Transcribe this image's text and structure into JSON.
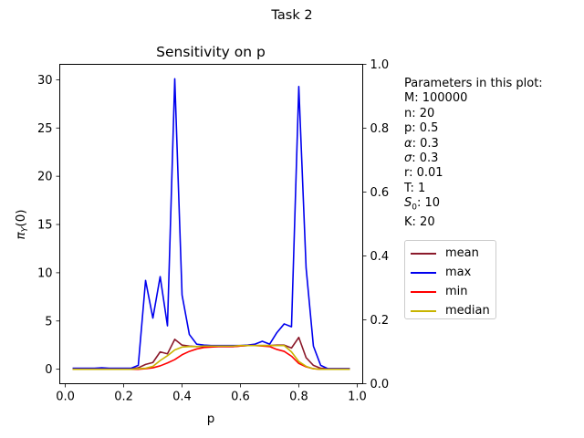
{
  "figure": {
    "suptitle": "Task 2",
    "params_title": "Parameters in this plot:",
    "params": [
      {
        "label": "M",
        "value": "100000"
      },
      {
        "label": "n",
        "value": "20"
      },
      {
        "label": "p",
        "value": "0.5"
      },
      {
        "label": "α",
        "value": "0.3",
        "italic": true
      },
      {
        "label": "σ",
        "value": "0.3",
        "italic": true
      },
      {
        "label": "r",
        "value": "0.01"
      },
      {
        "label": "T",
        "value": "1"
      },
      {
        "label": "S0",
        "value": "10",
        "italic": true,
        "sub": true
      },
      {
        "label": "K",
        "value": "20"
      }
    ]
  },
  "chart_data": {
    "type": "line",
    "title": "Sensitivity on p",
    "xlabel": "p",
    "ylabel": "π_Y(0)",
    "xlim": [
      -0.019,
      1.019
    ],
    "ylim": [
      -1.5,
      31.6
    ],
    "xticks": [
      "0.0",
      "0.2",
      "0.4",
      "0.6",
      "0.8",
      "1.0"
    ],
    "yticks": [
      "0",
      "5",
      "10",
      "15",
      "20",
      "25",
      "30"
    ],
    "y2lim": [
      0,
      1
    ],
    "y2ticks": [
      "0.0",
      "0.2",
      "0.4",
      "0.6",
      "0.8",
      "1.0"
    ],
    "legend_position": "outside-right",
    "x": [
      0.025,
      0.05,
      0.075,
      0.1,
      0.125,
      0.15,
      0.175,
      0.2,
      0.225,
      0.25,
      0.275,
      0.3,
      0.325,
      0.35,
      0.375,
      0.4,
      0.425,
      0.45,
      0.475,
      0.5,
      0.525,
      0.55,
      0.575,
      0.6,
      0.625,
      0.65,
      0.675,
      0.7,
      0.725,
      0.75,
      0.775,
      0.8,
      0.825,
      0.85,
      0.875,
      0.9,
      0.925,
      0.95,
      0.975
    ],
    "series": [
      {
        "name": "mean",
        "color": "#8b1a2b",
        "values": [
          0.05,
          0.05,
          0.05,
          0.05,
          0.1,
          0.05,
          0.05,
          0.05,
          0.05,
          0.15,
          0.5,
          0.7,
          1.8,
          1.6,
          3.1,
          2.5,
          2.4,
          2.35,
          2.35,
          2.35,
          2.35,
          2.35,
          2.35,
          2.4,
          2.45,
          2.45,
          2.45,
          2.45,
          2.5,
          2.5,
          2.2,
          3.3,
          1.2,
          0.4,
          0.1,
          0.05,
          0.05,
          0.05,
          0.05
        ]
      },
      {
        "name": "max",
        "color": "#0000ee",
        "values": [
          0.1,
          0.1,
          0.1,
          0.1,
          0.15,
          0.1,
          0.1,
          0.1,
          0.1,
          0.4,
          9.2,
          5.3,
          9.6,
          4.5,
          30.1,
          7.7,
          3.6,
          2.6,
          2.5,
          2.45,
          2.45,
          2.45,
          2.45,
          2.45,
          2.5,
          2.6,
          2.9,
          2.6,
          3.8,
          4.7,
          4.4,
          29.3,
          10.5,
          2.4,
          0.4,
          0.05,
          0.05,
          0.05,
          0.05
        ]
      },
      {
        "name": "min",
        "color": "#ff0000",
        "values": [
          0.0,
          0.0,
          0.0,
          0.0,
          0.0,
          0.0,
          0.0,
          0.0,
          0.0,
          0.0,
          0.05,
          0.15,
          0.35,
          0.65,
          1.0,
          1.5,
          1.85,
          2.1,
          2.25,
          2.3,
          2.35,
          2.35,
          2.35,
          2.4,
          2.45,
          2.45,
          2.4,
          2.35,
          2.05,
          1.85,
          1.35,
          0.6,
          0.25,
          0.05,
          0.0,
          0.0,
          0.0,
          0.0,
          0.0
        ]
      },
      {
        "name": "median",
        "color": "#c8b400",
        "values": [
          0.0,
          0.0,
          0.0,
          0.0,
          0.0,
          0.0,
          0.0,
          0.0,
          0.0,
          0.05,
          0.1,
          0.3,
          0.9,
          1.4,
          2.0,
          2.3,
          2.35,
          2.35,
          2.4,
          2.4,
          2.4,
          2.4,
          2.4,
          2.45,
          2.45,
          2.45,
          2.45,
          2.45,
          2.45,
          2.45,
          1.8,
          0.8,
          0.3,
          0.05,
          0.0,
          0.0,
          0.0,
          0.0,
          0.0
        ]
      }
    ]
  }
}
